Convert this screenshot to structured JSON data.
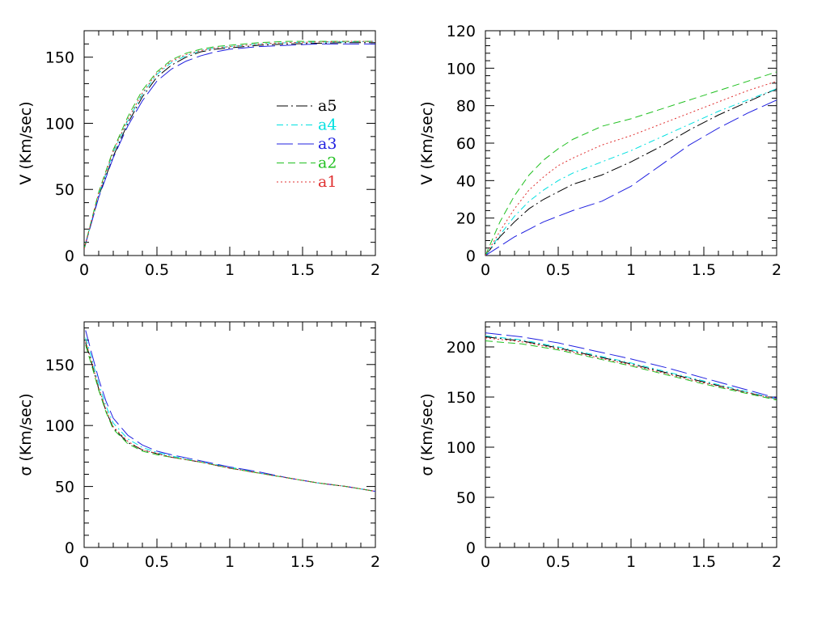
{
  "chart_data": [
    {
      "type": "line",
      "ylabel": "V  (Km/sec)",
      "xlim": [
        0,
        2
      ],
      "ylim": [
        0,
        170
      ],
      "xticks": [
        0,
        0.5,
        1,
        1.5,
        2
      ],
      "xtick_labels": [
        "0",
        "0.5",
        "1",
        "1.5",
        "2"
      ],
      "yticks": [
        0,
        50,
        100,
        150
      ],
      "ytick_labels": [
        "0",
        "50",
        "100",
        "150"
      ],
      "legend_placement": "center-right",
      "series": [
        {
          "name": "a5",
          "color": "#000000",
          "dash": "14,4,2,4",
          "x": [
            0,
            0.1,
            0.2,
            0.3,
            0.4,
            0.5,
            0.6,
            0.7,
            0.8,
            0.9,
            1.0,
            1.2,
            1.4,
            1.6,
            1.8,
            2.0
          ],
          "y": [
            5,
            45,
            75,
            100,
            120,
            135,
            144,
            150,
            154,
            156,
            157,
            159,
            160,
            160.5,
            161,
            161
          ]
        },
        {
          "name": "a4",
          "color": "#00e0e0",
          "dash": "8,4,2,4",
          "x": [
            0,
            0.1,
            0.2,
            0.3,
            0.4,
            0.5,
            0.6,
            0.7,
            0.8,
            0.9,
            1.0,
            1.2,
            1.4,
            1.6,
            1.8,
            2.0
          ],
          "y": [
            5,
            46,
            78,
            102,
            122,
            137,
            146,
            151,
            155,
            157,
            158,
            160,
            161,
            161.5,
            161.5,
            162
          ]
        },
        {
          "name": "a3",
          "color": "#2020e0",
          "dash": "20,6",
          "x": [
            0,
            0.1,
            0.2,
            0.3,
            0.4,
            0.5,
            0.6,
            0.7,
            0.8,
            0.9,
            1.0,
            1.2,
            1.4,
            1.6,
            1.8,
            2.0
          ],
          "y": [
            5,
            44,
            74,
            98,
            117,
            132,
            141,
            147,
            151,
            154,
            156,
            158,
            159,
            160,
            160,
            160
          ]
        },
        {
          "name": "a2",
          "color": "#20c020",
          "dash": "9,5",
          "x": [
            0,
            0.1,
            0.2,
            0.3,
            0.4,
            0.5,
            0.6,
            0.7,
            0.8,
            0.9,
            1.0,
            1.2,
            1.4,
            1.6,
            1.8,
            2.0
          ],
          "y": [
            5,
            48,
            80,
            105,
            125,
            139,
            148,
            153,
            156,
            158,
            159,
            161,
            162,
            162,
            162,
            162
          ]
        },
        {
          "name": "a1",
          "color": "#e03030",
          "dash": "2,3",
          "x": [
            0,
            0.1,
            0.2,
            0.3,
            0.4,
            0.5,
            0.6,
            0.7,
            0.8,
            0.9,
            1.0,
            1.2,
            1.4,
            1.6,
            1.8,
            2.0
          ],
          "y": [
            5,
            47,
            79,
            103,
            123,
            138,
            147,
            152,
            155,
            157,
            158,
            160,
            161,
            161.5,
            162,
            162
          ]
        }
      ]
    },
    {
      "type": "line",
      "ylabel": "V  (Km/sec)",
      "xlim": [
        0,
        2
      ],
      "ylim": [
        0,
        120
      ],
      "xticks": [
        0,
        0.5,
        1,
        1.5,
        2
      ],
      "xtick_labels": [
        "0",
        "0.5",
        "1",
        "1.5",
        "2"
      ],
      "yticks": [
        0,
        20,
        40,
        60,
        80,
        100,
        120
      ],
      "ytick_labels": [
        "0",
        "20",
        "40",
        "60",
        "80",
        "100",
        "120"
      ],
      "series": [
        {
          "name": "a5",
          "color": "#000000",
          "dash": "14,4,2,4",
          "x": [
            0,
            0.1,
            0.2,
            0.3,
            0.4,
            0.5,
            0.6,
            0.8,
            1.0,
            1.2,
            1.4,
            1.6,
            1.8,
            2.0
          ],
          "y": [
            0,
            10,
            18,
            25,
            30,
            34,
            38,
            43,
            50,
            58,
            67,
            75,
            82,
            89
          ]
        },
        {
          "name": "a4",
          "color": "#00e0e0",
          "dash": "8,4,2,4",
          "x": [
            0,
            0.1,
            0.2,
            0.3,
            0.4,
            0.5,
            0.6,
            0.8,
            1.0,
            1.2,
            1.4,
            1.6,
            1.8,
            2.0
          ],
          "y": [
            0,
            11,
            21,
            29,
            35,
            40,
            44,
            50,
            56,
            63,
            70,
            77,
            83,
            89
          ]
        },
        {
          "name": "a3",
          "color": "#2020e0",
          "dash": "20,6",
          "x": [
            0,
            0.1,
            0.2,
            0.3,
            0.4,
            0.5,
            0.6,
            0.8,
            1.0,
            1.2,
            1.4,
            1.6,
            1.8,
            2.0
          ],
          "y": [
            0,
            5,
            10,
            14,
            18,
            21,
            24,
            29,
            37,
            48,
            59,
            68,
            76,
            83
          ]
        },
        {
          "name": "a2",
          "color": "#20c020",
          "dash": "9,5",
          "x": [
            0,
            0.1,
            0.2,
            0.3,
            0.4,
            0.5,
            0.6,
            0.8,
            1.0,
            1.2,
            1.4,
            1.6,
            1.8,
            2.0
          ],
          "y": [
            0,
            18,
            32,
            43,
            51,
            57,
            62,
            69,
            73,
            78,
            83,
            88,
            93,
            98
          ]
        },
        {
          "name": "a1",
          "color": "#e03030",
          "dash": "2,3",
          "x": [
            0,
            0.1,
            0.2,
            0.3,
            0.4,
            0.5,
            0.6,
            0.8,
            1.0,
            1.2,
            1.4,
            1.6,
            1.8,
            2.0
          ],
          "y": [
            0,
            13,
            25,
            35,
            42,
            48,
            52,
            59,
            64,
            70,
            76,
            82,
            88,
            93
          ]
        }
      ]
    },
    {
      "type": "line",
      "ylabel": "σ  (Km/sec)",
      "xlim": [
        0,
        2
      ],
      "ylim": [
        0,
        185
      ],
      "xticks": [
        0,
        0.5,
        1,
        1.5,
        2
      ],
      "xtick_labels": [
        "0",
        "0.5",
        "1",
        "1.5",
        "2"
      ],
      "yticks": [
        0,
        50,
        100,
        150
      ],
      "ytick_labels": [
        "0",
        "50",
        "100",
        "150"
      ],
      "series": [
        {
          "name": "a5",
          "color": "#000000",
          "dash": "14,4,2,4",
          "x": [
            0.01,
            0.05,
            0.1,
            0.15,
            0.2,
            0.3,
            0.4,
            0.5,
            0.6,
            0.8,
            1.0,
            1.2,
            1.4,
            1.6,
            1.8,
            2.0
          ],
          "y": [
            168,
            152,
            130,
            112,
            98,
            86,
            80,
            77,
            74,
            70,
            65,
            61,
            57,
            53,
            50,
            46
          ]
        },
        {
          "name": "a4",
          "color": "#00e0e0",
          "dash": "8,4,2,4",
          "x": [
            0.01,
            0.05,
            0.1,
            0.15,
            0.2,
            0.3,
            0.4,
            0.5,
            0.6,
            0.8,
            1.0,
            1.2,
            1.4,
            1.6,
            1.8,
            2.0
          ],
          "y": [
            172,
            156,
            134,
            116,
            102,
            89,
            82,
            78,
            75,
            70,
            66,
            61,
            57,
            53,
            50,
            46
          ]
        },
        {
          "name": "a3",
          "color": "#2020e0",
          "dash": "20,6",
          "x": [
            0.01,
            0.05,
            0.1,
            0.15,
            0.2,
            0.3,
            0.4,
            0.5,
            0.6,
            0.8,
            1.0,
            1.2,
            1.4,
            1.6,
            1.8,
            2.0
          ],
          "y": [
            178,
            160,
            138,
            120,
            106,
            92,
            84,
            79,
            76,
            71,
            66,
            62,
            57,
            53,
            50,
            46
          ]
        },
        {
          "name": "a2",
          "color": "#20c020",
          "dash": "9,5",
          "x": [
            0.01,
            0.05,
            0.1,
            0.15,
            0.2,
            0.3,
            0.4,
            0.5,
            0.6,
            0.8,
            1.0,
            1.2,
            1.4,
            1.6,
            1.8,
            2.0
          ],
          "y": [
            166,
            150,
            129,
            111,
            97,
            85,
            79,
            76,
            74,
            70,
            65,
            61,
            57,
            53,
            50,
            46
          ]
        },
        {
          "name": "a1",
          "color": "#e03030",
          "dash": "2,3",
          "x": [
            0.01,
            0.05,
            0.1,
            0.15,
            0.2,
            0.3,
            0.4,
            0.5,
            0.6,
            0.8,
            1.0,
            1.2,
            1.4,
            1.6,
            1.8,
            2.0
          ],
          "y": [
            169,
            153,
            131,
            113,
            99,
            87,
            80,
            77,
            74,
            70,
            65,
            61,
            57,
            53,
            50,
            46
          ]
        }
      ]
    },
    {
      "type": "line",
      "ylabel": "σ  (Km/sec)",
      "xlim": [
        0,
        2
      ],
      "ylim": [
        0,
        225
      ],
      "xticks": [
        0,
        0.5,
        1,
        1.5,
        2
      ],
      "xtick_labels": [
        "0",
        "0.5",
        "1",
        "1.5",
        "2"
      ],
      "yticks": [
        0,
        50,
        100,
        150,
        200
      ],
      "ytick_labels": [
        "0",
        "50",
        "100",
        "150",
        "200"
      ],
      "series": [
        {
          "name": "a5",
          "color": "#000000",
          "dash": "14,4,2,4",
          "x": [
            0,
            0.25,
            0.5,
            0.75,
            1.0,
            1.25,
            1.5,
            1.75,
            2.0
          ],
          "y": [
            210,
            206,
            199,
            191,
            183,
            174,
            165,
            156,
            148
          ]
        },
        {
          "name": "a4",
          "color": "#00e0e0",
          "dash": "8,4,2,4",
          "x": [
            0,
            0.25,
            0.5,
            0.75,
            1.0,
            1.25,
            1.5,
            1.75,
            2.0
          ],
          "y": [
            211,
            207,
            200,
            192,
            184,
            175,
            166,
            157,
            148
          ]
        },
        {
          "name": "a3",
          "color": "#2020e0",
          "dash": "20,6",
          "x": [
            0,
            0.25,
            0.5,
            0.75,
            1.0,
            1.25,
            1.5,
            1.75,
            2.0
          ],
          "y": [
            214,
            210,
            204,
            196,
            188,
            179,
            169,
            159,
            149
          ]
        },
        {
          "name": "a2",
          "color": "#20c020",
          "dash": "9,5",
          "x": [
            0,
            0.25,
            0.5,
            0.75,
            1.0,
            1.25,
            1.5,
            1.75,
            2.0
          ],
          "y": [
            206,
            203,
            197,
            189,
            181,
            172,
            163,
            155,
            147
          ]
        },
        {
          "name": "a1",
          "color": "#e03030",
          "dash": "2,3",
          "x": [
            0,
            0.25,
            0.5,
            0.75,
            1.0,
            1.25,
            1.5,
            1.75,
            2.0
          ],
          "y": [
            209,
            205,
            198,
            190,
            182,
            173,
            164,
            156,
            148
          ]
        }
      ]
    }
  ]
}
